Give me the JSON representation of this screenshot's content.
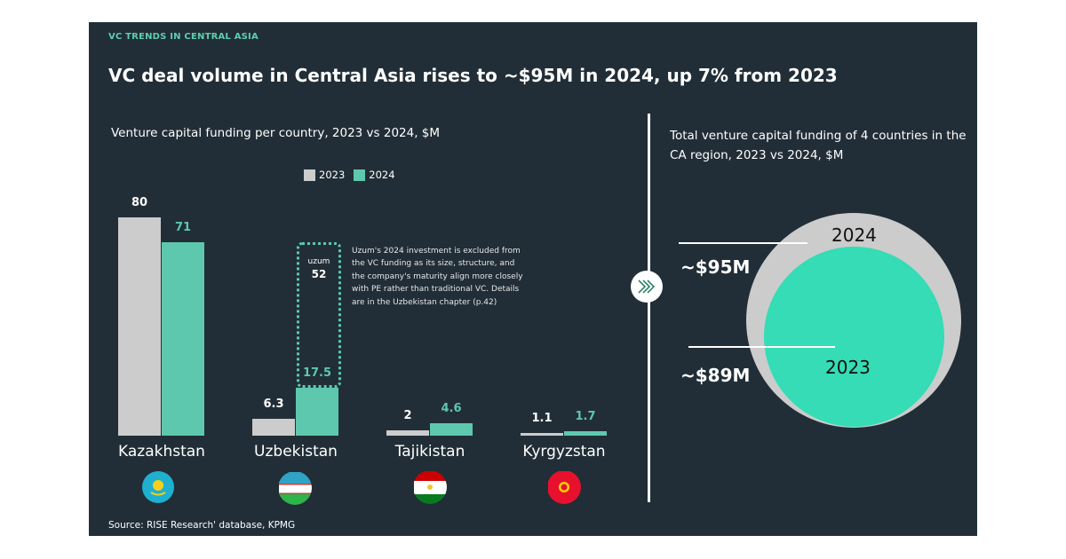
{
  "header": {
    "kicker": "VC TRENDS IN CENTRAL ASIA",
    "title": "VC deal volume in Central Asia rises to ~$95M in 2024, up 7% from 2023"
  },
  "chart_data": [
    {
      "type": "bar",
      "title": "Venture capital funding per country, 2023 vs 2024, $M",
      "categories": [
        "Kazakhstan",
        "Uzbekistan",
        "Tajikistan",
        "Kyrgyzstan"
      ],
      "series": [
        {
          "name": "2023",
          "color": "#cccccc",
          "values": [
            80,
            6.3,
            2,
            1.1
          ],
          "labels": [
            "80",
            "6.3",
            "2",
            "1.1"
          ]
        },
        {
          "name": "2024",
          "color": "#5ec8ae",
          "values": [
            71,
            17.5,
            4.6,
            1.7
          ],
          "labels": [
            "71",
            "17.5",
            "4.6",
            "1.7"
          ]
        }
      ],
      "legend": "top",
      "grid": false,
      "annotation": {
        "brand": "uzum",
        "value": "52",
        "text": "Uzum's 2024 investment is excluded from the VC funding as its size, structure, and the company's maturity align more closely with PE rather than traditional VC. Details are in the Uzbekistan chapter (p.42)"
      }
    },
    {
      "type": "bubble",
      "title": "Total venture capital funding of 4 countries in the CA region, 2023 vs 2024, $M",
      "items": [
        {
          "label": "2024",
          "value": "~$95M",
          "color": "#cccccc"
        },
        {
          "label": "2023",
          "value": "~$89M",
          "color": "#35dcb5"
        }
      ]
    }
  ],
  "flags": [
    "kazakhstan-flag",
    "uzbekistan-flag",
    "tajikistan-flag",
    "kyrgyzstan-flag"
  ],
  "source": "Source: RISE Research' database, KPMG"
}
